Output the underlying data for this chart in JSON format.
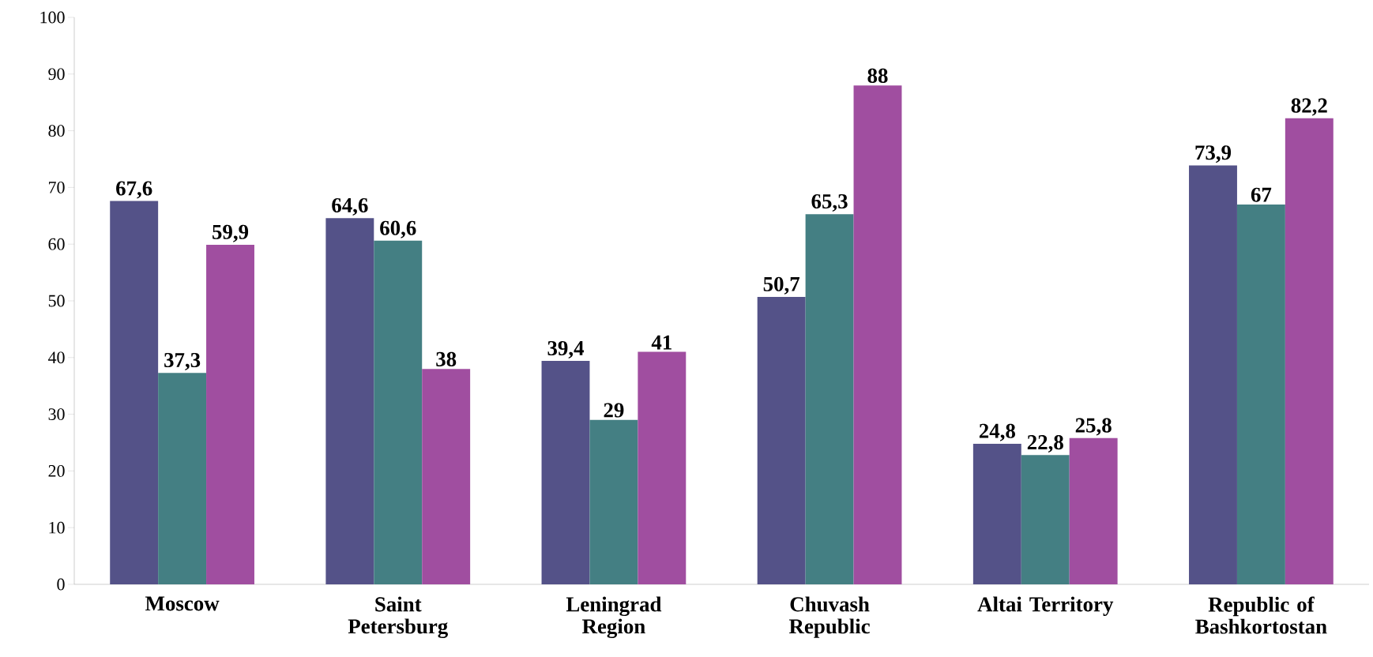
{
  "chart_data": {
    "type": "bar",
    "categories": [
      "Moscow",
      "Saint Petersburg",
      "Leningrad Region",
      "Chuvash Republic",
      "Altai Territory",
      "Republic of Bashkortostan"
    ],
    "series": [
      {
        "color": "#545288",
        "values": [
          67.6,
          64.6,
          39.4,
          50.7,
          24.8,
          73.9
        ],
        "value_labels": [
          "67,6",
          "64,6",
          "39,4",
          "50,7",
          "24,8",
          "73,9"
        ]
      },
      {
        "color": "#447f83",
        "values": [
          37.3,
          60.6,
          29,
          65.3,
          22.8,
          67
        ],
        "value_labels": [
          "37,3",
          "60,6",
          "29",
          "65,3",
          "22,8",
          "67"
        ]
      },
      {
        "color": "#a04ea0",
        "values": [
          59.9,
          38,
          41,
          88,
          25.8,
          82.2
        ],
        "value_labels": [
          "59,9",
          "38",
          "41",
          "88",
          "25,8",
          "82,2"
        ]
      }
    ],
    "ylim": [
      0,
      100
    ],
    "yticks": [
      0,
      10,
      20,
      30,
      40,
      50,
      60,
      70,
      80,
      90,
      100
    ],
    "grid": false
  }
}
